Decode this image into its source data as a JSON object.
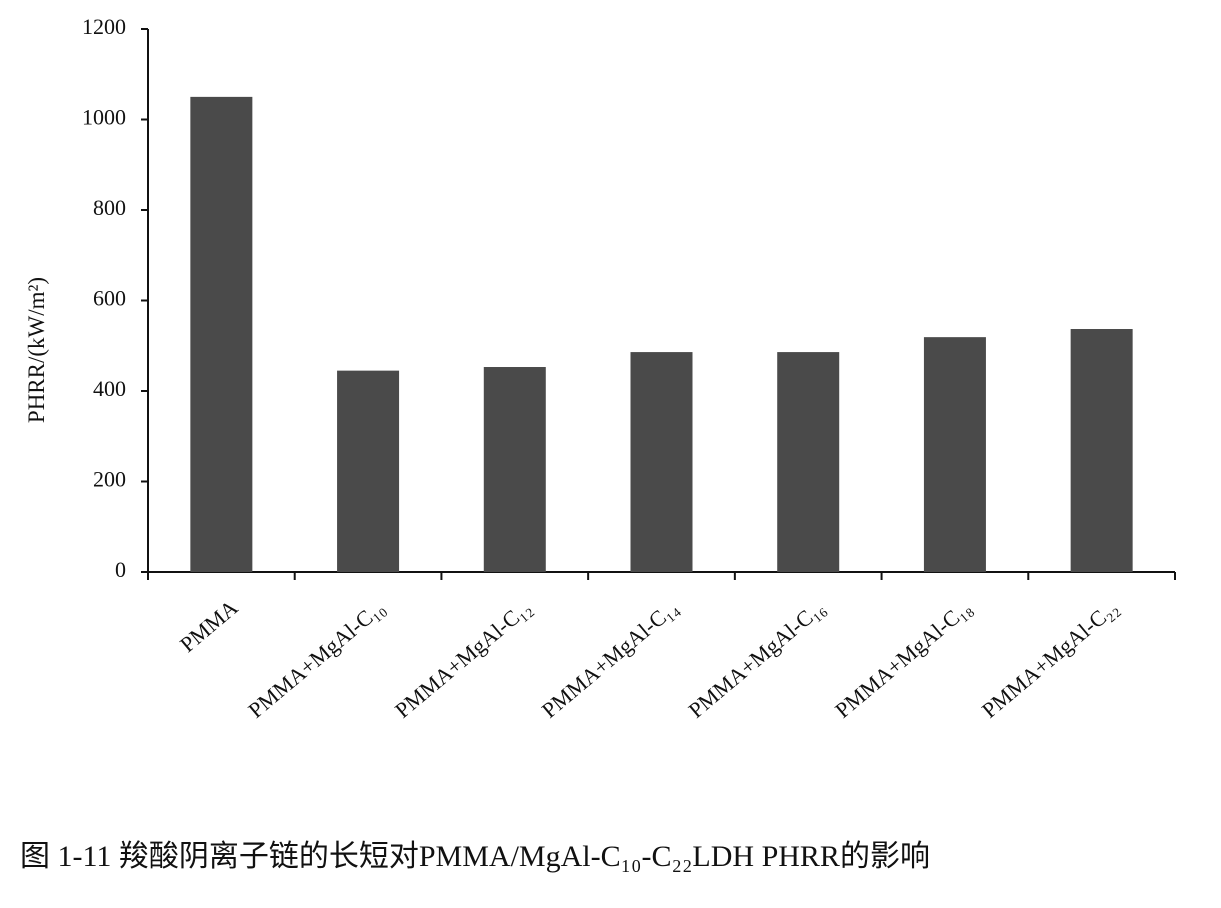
{
  "chart_data": {
    "type": "bar",
    "title": "图 1-11  羧酸阴离子链的长短对PMMA/MgAl-C₁₀-C₂₂LDH PHRR的影响",
    "y_label": "PHRR/(kW/m²)",
    "categories": [
      "PMMA",
      "PMMA+MgAl-C₁₀",
      "PMMA+MgAl-C₁₂",
      "PMMA+MgAl-C₁₄",
      "PMMA+MgAl-C₁₆",
      "PMMA+MgAl-C₁₈",
      "PMMA+MgAl-C₂₂"
    ],
    "values": [
      1050,
      445,
      453,
      486,
      486,
      519,
      537
    ],
    "color": "#4a4a4a",
    "ylim": [
      0,
      1200
    ],
    "yticks": [
      0,
      200,
      400,
      600,
      800,
      1000,
      1200
    ],
    "grid": false
  }
}
